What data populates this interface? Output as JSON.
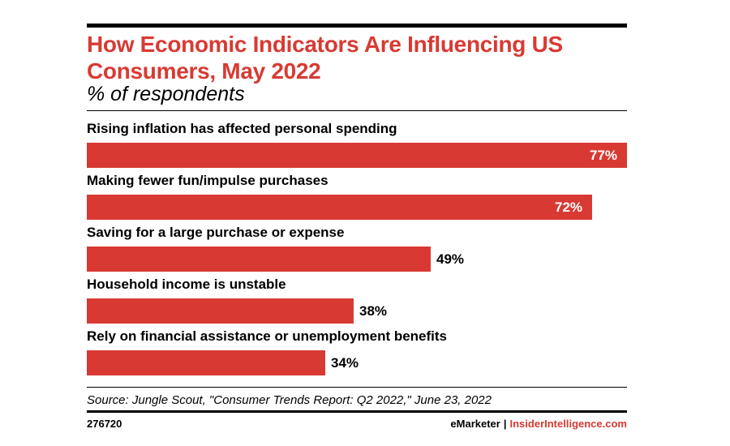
{
  "chart_data": {
    "type": "bar",
    "orientation": "horizontal",
    "title": "How Economic Indicators Are Influencing US Consumers, May 2022",
    "subtitle": "% of respondents",
    "categories": [
      "Rising inflation has affected personal spending",
      "Making fewer fun/impulse purchases",
      "Saving for a large purchase or expense",
      "Household income is unstable",
      "Rely on financial assistance or unemployment benefits"
    ],
    "values": [
      77,
      72,
      49,
      38,
      34
    ],
    "value_labels": [
      "77%",
      "72%",
      "49%",
      "38%",
      "34%"
    ],
    "xlim": [
      0,
      77
    ],
    "grid": false,
    "legend": "none",
    "bar_color": "#d83a33"
  },
  "source": "Source: Jungle Scout, \"Consumer Trends Report: Q2 2022,\" June 23, 2022",
  "footer": {
    "chart_id": "276720",
    "brand_primary": "eMarketer",
    "brand_separator": "|",
    "brand_secondary": "InsiderIntelligence.com"
  },
  "colors": {
    "accent": "#d83a33",
    "text": "#000000",
    "background": "#ffffff"
  }
}
